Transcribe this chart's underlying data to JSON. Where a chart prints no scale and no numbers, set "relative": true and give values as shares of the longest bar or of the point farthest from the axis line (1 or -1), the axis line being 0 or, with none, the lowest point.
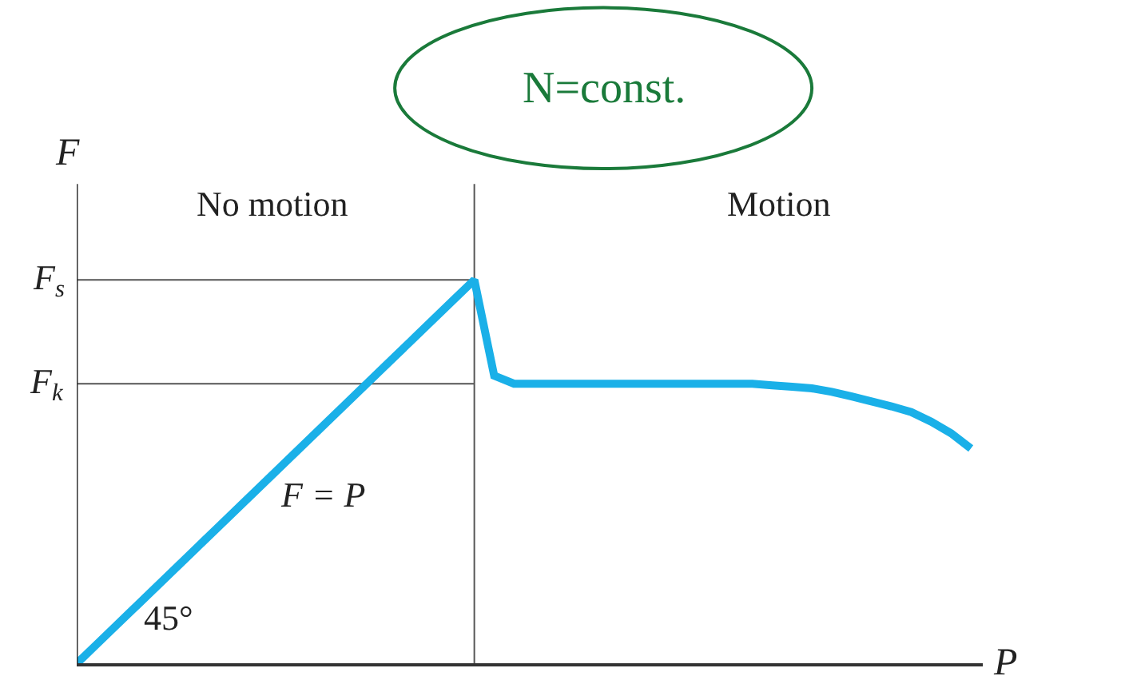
{
  "chart_data": {
    "type": "line",
    "relative": true,
    "xlabel": "P",
    "ylabel": "F",
    "categories": [
      null,
      null,
      null,
      null,
      null,
      null,
      null,
      null,
      null,
      null,
      null,
      null,
      null,
      null,
      null,
      null,
      null,
      null,
      null,
      null,
      null,
      null,
      null,
      null,
      null,
      null,
      null,
      null,
      null,
      null,
      null,
      null,
      null,
      null,
      null,
      null,
      null,
      null,
      null,
      null,
      null,
      null,
      null,
      null,
      null,
      null
    ],
    "series": [
      {
        "color": "#1ab0e8",
        "values": [
          0,
          0.05,
          0.1,
          0.15,
          0.2,
          0.25,
          0.3,
          0.35,
          0.4,
          0.45,
          0.5,
          0.55,
          0.6,
          0.65,
          0.7,
          0.75,
          0.8,
          0.85,
          0.9,
          0.95,
          1,
          0.75,
          0.729,
          0.729,
          0.729,
          0.729,
          0.729,
          0.729,
          0.729,
          0.729,
          0.729,
          0.729,
          0.729,
          0.729,
          0.729,
          0.725,
          0.721,
          0.717,
          0.708,
          0.696,
          0.683,
          0.67,
          0.655,
          0.63,
          0.6,
          0.56
        ]
      }
    ],
    "tick_labels": false,
    "grid": false,
    "marker": "none",
    "line_style": "solid",
    "ref_lines": [
      {
        "axis": "y",
        "value": 1,
        "label": "F$_{s}$",
        "color": "#555555"
      },
      {
        "axis": "y",
        "value": 0.729,
        "label": "F$_{k}$",
        "color": "#555555"
      }
    ],
    "annotations": [
      "No motion",
      "Motion",
      "F = P",
      "45°",
      "N=const."
    ]
  }
}
